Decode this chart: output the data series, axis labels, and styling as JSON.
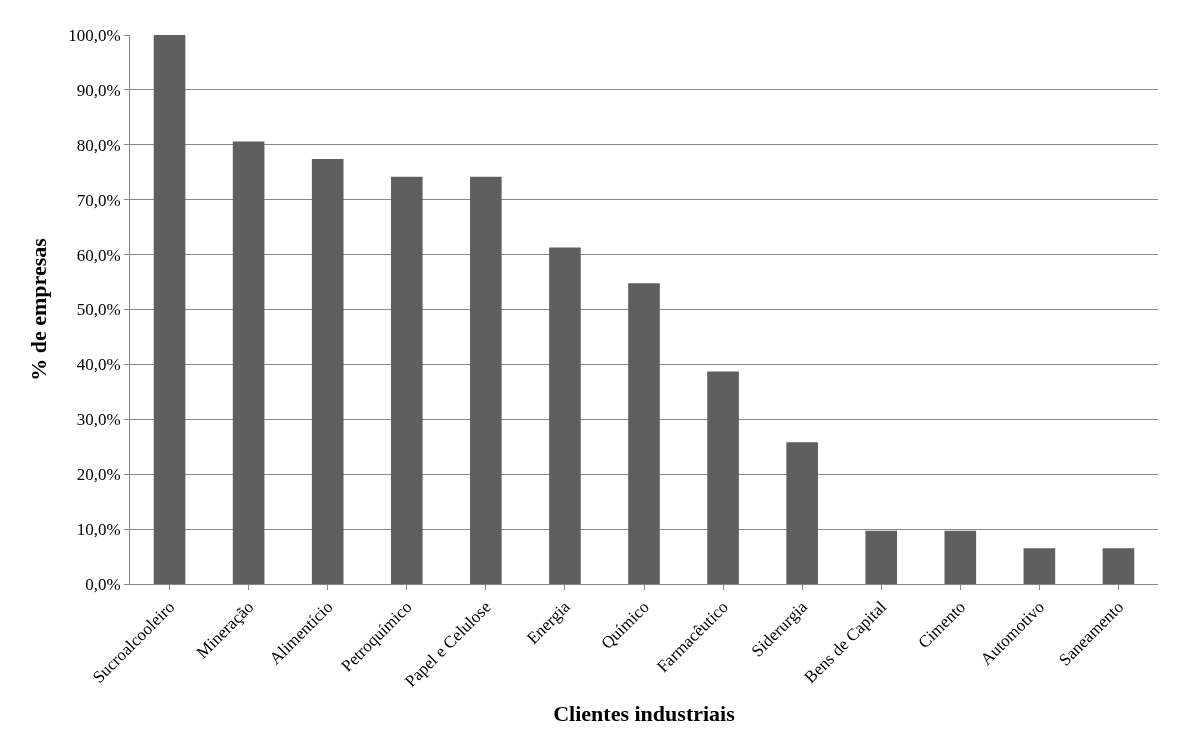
{
  "chart_data": {
    "type": "bar",
    "xlabel": "Clientes industriais",
    "ylabel": "% de empresas",
    "categories": [
      "Sucroalcooleiro",
      "Mineração",
      "Alimentício",
      "Petroquímico",
      "Papel e Celulose",
      "Energia",
      "Químico",
      "Farmacêutico",
      "Siderurgia",
      "Bens de Capital",
      "Cimento",
      "Automotivo",
      "Saneamento"
    ],
    "values": [
      100,
      80.6,
      77.4,
      74.2,
      74.2,
      61.3,
      54.8,
      38.7,
      25.8,
      9.7,
      9.7,
      6.5,
      6.5
    ],
    "color": "#5f5f5f",
    "ylim": [
      0,
      100
    ],
    "yticks": [
      {
        "value": 0,
        "label": "0,0%"
      },
      {
        "value": 10,
        "label": "10,0%"
      },
      {
        "value": 20,
        "label": "20,0%"
      },
      {
        "value": 30,
        "label": "30,0%"
      },
      {
        "value": 40,
        "label": "40,0%"
      },
      {
        "value": 50,
        "label": "50,0%"
      },
      {
        "value": 60,
        "label": "60,0%"
      },
      {
        "value": 70,
        "label": "70,0%"
      },
      {
        "value": 80,
        "label": "80,0%"
      },
      {
        "value": 90,
        "label": "90,0%"
      },
      {
        "value": 100,
        "label": "100,0%"
      }
    ],
    "grid": "y",
    "legend": false
  }
}
